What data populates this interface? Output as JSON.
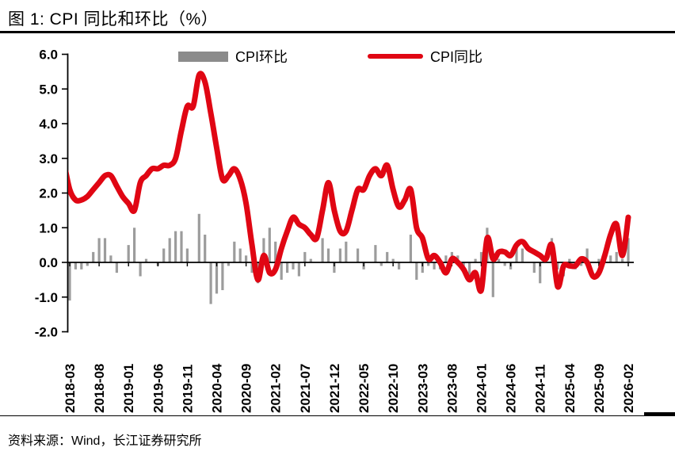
{
  "footer": {
    "source": "资料来源：Wind，长江证券研究所"
  },
  "colors": {
    "line_red": "#e00613",
    "bar_gray": "#9c9c9c",
    "legend_gray": "#8b8b8b",
    "axis_black": "#000000"
  },
  "chart_data": {
    "type": "combo",
    "title": "图 1: CPI 同比和环比（%）",
    "ylabel": "",
    "xlabel": "",
    "ylim": [
      -2.0,
      6.0
    ],
    "ytick_step": 1.0,
    "grid": false,
    "legend_position": "top",
    "categories": [
      "2018-02",
      "2018-03",
      "2018-04",
      "2018-05",
      "2018-06",
      "2018-07",
      "2018-08",
      "2018-09",
      "2018-10",
      "2018-11",
      "2018-12",
      "2019-01",
      "2019-02",
      "2019-03",
      "2019-04",
      "2019-05",
      "2019-06",
      "2019-07",
      "2019-08",
      "2019-09",
      "2019-10",
      "2019-11",
      "2019-12",
      "2020-01",
      "2020-02",
      "2020-03",
      "2020-04",
      "2020-05",
      "2020-06",
      "2020-07",
      "2020-08",
      "2020-09",
      "2020-10",
      "2020-11",
      "2020-12",
      "2021-01",
      "2021-02",
      "2021-03",
      "2021-04",
      "2021-05",
      "2021-06",
      "2021-07",
      "2021-08",
      "2021-09",
      "2021-10",
      "2021-11",
      "2021-12",
      "2022-01",
      "2022-02",
      "2022-03",
      "2022-04",
      "2022-05",
      "2022-06",
      "2022-07",
      "2022-08",
      "2022-09",
      "2022-10",
      "2022-11",
      "2022-12",
      "2023-01",
      "2023-02",
      "2023-03",
      "2023-04",
      "2023-05",
      "2023-06",
      "2023-07",
      "2023-08",
      "2023-09",
      "2023-10",
      "2023-11",
      "2023-12",
      "2024-01",
      "2024-02",
      "2024-03",
      "2024-04",
      "2024-05",
      "2024-06",
      "2024-07",
      "2024-08",
      "2024-09",
      "2024-10",
      "2024-11",
      "2024-12",
      "2025-01",
      "2025-02",
      "2025-03",
      "2025-04",
      "2025-05",
      "2025-06",
      "2025-07",
      "2025-08",
      "2025-09",
      "2025-10",
      "2025-11",
      "2025-12",
      "2026-01",
      "2026-02"
    ],
    "xtick_labels": [
      "2018-03",
      "2018-08",
      "2019-01",
      "2019-06",
      "2019-11",
      "2020-04",
      "2020-09",
      "2021-02",
      "2021-07",
      "2021-12",
      "2022-05",
      "2022-10",
      "2023-03",
      "2023-08",
      "2024-01",
      "2024-06",
      "2024-11",
      "2025-04",
      "2025-09",
      "2026-02"
    ],
    "series": [
      {
        "name": "CPI环比",
        "kind": "bar",
        "color": "#9c9c9c",
        "values": [
          null,
          -1.1,
          -0.2,
          -0.2,
          -0.1,
          0.3,
          0.7,
          0.7,
          0.2,
          -0.3,
          0.0,
          0.5,
          1.0,
          -0.4,
          0.1,
          0.0,
          -0.1,
          0.4,
          0.7,
          0.9,
          0.9,
          0.4,
          0.0,
          1.4,
          0.8,
          -1.2,
          -0.9,
          -0.8,
          -0.1,
          0.6,
          0.4,
          0.2,
          -0.3,
          -0.6,
          0.7,
          1.0,
          0.6,
          -0.5,
          -0.3,
          -0.2,
          -0.4,
          0.3,
          0.1,
          0.0,
          0.7,
          0.4,
          -0.3,
          0.4,
          0.6,
          0.0,
          0.4,
          -0.2,
          0.0,
          0.5,
          -0.1,
          0.3,
          0.1,
          -0.2,
          0.0,
          0.8,
          -0.5,
          -0.3,
          -0.1,
          -0.2,
          -0.2,
          0.2,
          0.3,
          0.2,
          -0.1,
          -0.5,
          0.1,
          0.3,
          1.0,
          -1.0,
          0.1,
          -0.1,
          -0.2,
          0.5,
          0.4,
          0.0,
          -0.3,
          -0.6,
          0.0,
          0.7,
          -0.2,
          -0.4,
          0.1,
          -0.2,
          -0.1,
          0.4,
          0.0,
          0.1,
          0.2,
          0.2,
          0.3,
          0.1,
          0.7
        ]
      },
      {
        "name": "CPI同比",
        "kind": "line",
        "color": "#e00613",
        "values": [
          2.9,
          2.1,
          1.8,
          1.8,
          1.9,
          2.1,
          2.3,
          2.5,
          2.5,
          2.2,
          1.9,
          1.7,
          1.5,
          2.3,
          2.5,
          2.7,
          2.7,
          2.8,
          2.8,
          3.0,
          3.8,
          4.5,
          4.5,
          5.4,
          5.2,
          4.3,
          3.3,
          2.4,
          2.5,
          2.7,
          2.4,
          1.7,
          0.5,
          -0.5,
          0.2,
          -0.3,
          -0.2,
          0.4,
          0.9,
          1.3,
          1.1,
          1.0,
          0.8,
          0.7,
          1.5,
          2.3,
          1.5,
          0.9,
          0.9,
          1.5,
          2.1,
          2.1,
          2.5,
          2.7,
          2.5,
          2.8,
          2.1,
          1.6,
          1.8,
          2.1,
          1.0,
          0.7,
          0.1,
          0.2,
          0.0,
          -0.3,
          0.1,
          0.0,
          -0.2,
          -0.5,
          -0.3,
          -0.8,
          0.7,
          0.1,
          0.3,
          0.3,
          0.2,
          0.5,
          0.6,
          0.4,
          0.3,
          0.2,
          0.1,
          0.5,
          -0.7,
          -0.1,
          -0.1,
          -0.1,
          0.1,
          0.0,
          -0.4,
          -0.3,
          0.2,
          0.8,
          1.1,
          0.2,
          1.3
        ]
      }
    ]
  }
}
